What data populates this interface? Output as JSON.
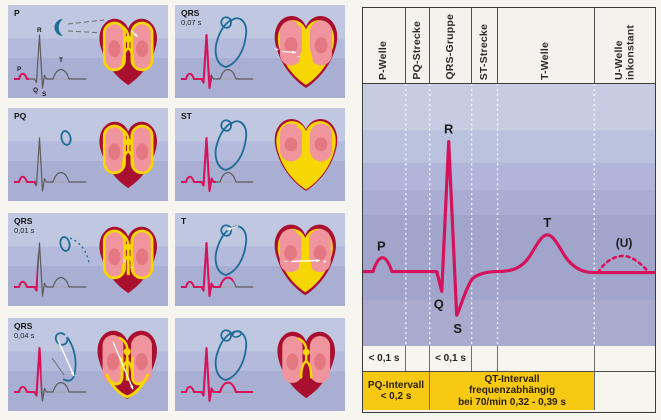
{
  "left_panels": [
    {
      "label": "P",
      "sublabel": ""
    },
    {
      "label": "PQ",
      "sublabel": ""
    },
    {
      "label": "QRS",
      "sublabel": "0,01 s"
    },
    {
      "label": "QRS",
      "sublabel": "0,04 s"
    },
    {
      "label": "QRS",
      "sublabel": "0,07 s"
    },
    {
      "label": "ST",
      "sublabel": ""
    },
    {
      "label": "T",
      "sublabel": ""
    },
    {
      "label": "",
      "sublabel": ""
    }
  ],
  "mini_ecg": {
    "p": "P",
    "q": "Q",
    "r": "R",
    "s": "S",
    "t": "T"
  },
  "right_panel": {
    "columns": [
      {
        "label": "P-Welle"
      },
      {
        "label": "PQ-Strecke"
      },
      {
        "label": "QRS-Gruppe"
      },
      {
        "label": "ST-Strecke"
      },
      {
        "label": "T-Welle"
      },
      {
        "label": "U-Welle inkonstant"
      }
    ],
    "wave_labels": {
      "p": "P",
      "q": "Q",
      "r": "R",
      "s": "S",
      "t": "T",
      "u": "(U)"
    },
    "durations": {
      "p": "< 0,1 s",
      "qrs": "< 0,1 s"
    },
    "intervals": {
      "pq_line1": "PQ-Intervall",
      "pq_line2": "< 0,2 s",
      "qt_line1": "QT-Intervall",
      "qt_line2": "frequenzabhängig",
      "qt_line3": "bei 70/min  0,32 - 0,39 s"
    },
    "colors": {
      "ecg_line": "#d4135c",
      "interval_yellow": "#f7c913",
      "loop_blue": "#1f6d96",
      "heart_red": "#a91030",
      "heart_pink": "#f0949d",
      "activation_yellow": "#f7d703"
    }
  }
}
